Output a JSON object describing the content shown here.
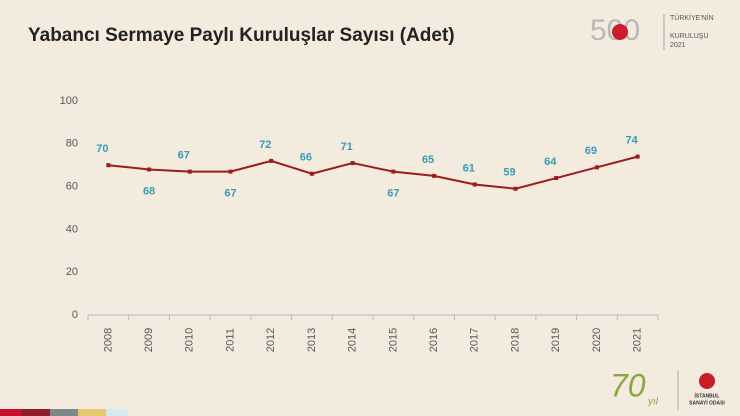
{
  "chart_data": {
    "type": "line",
    "title": "Yabancı Sermaye Paylı Kuruluşlar Sayısı (Adet)",
    "categories": [
      "2008",
      "2009",
      "2010",
      "2011",
      "2012",
      "2013",
      "2014",
      "2015",
      "2016",
      "2017",
      "2018",
      "2019",
      "2020",
      "2021"
    ],
    "series": [
      {
        "color": "#9b1c1c",
        "values": [
          70,
          68,
          67,
          67,
          72,
          66,
          71,
          67,
          65,
          61,
          59,
          64,
          69,
          74
        ]
      }
    ],
    "ylim": [
      0,
      100
    ],
    "yticks": [
      0,
      20,
      40,
      60,
      80,
      100
    ],
    "grid": false,
    "label_color": "#3a9bb5"
  },
  "logos": {
    "top_right": {
      "mark": "500",
      "line1": "TÜRKİYE'NİN",
      "line2": "KURULUŞU",
      "year": "2021"
    },
    "bottom_right": {
      "anniversary": "70",
      "anniversary_word": "yıl",
      "line1": "İSTANBUL",
      "line2": "SANAYİ ODASI"
    }
  }
}
